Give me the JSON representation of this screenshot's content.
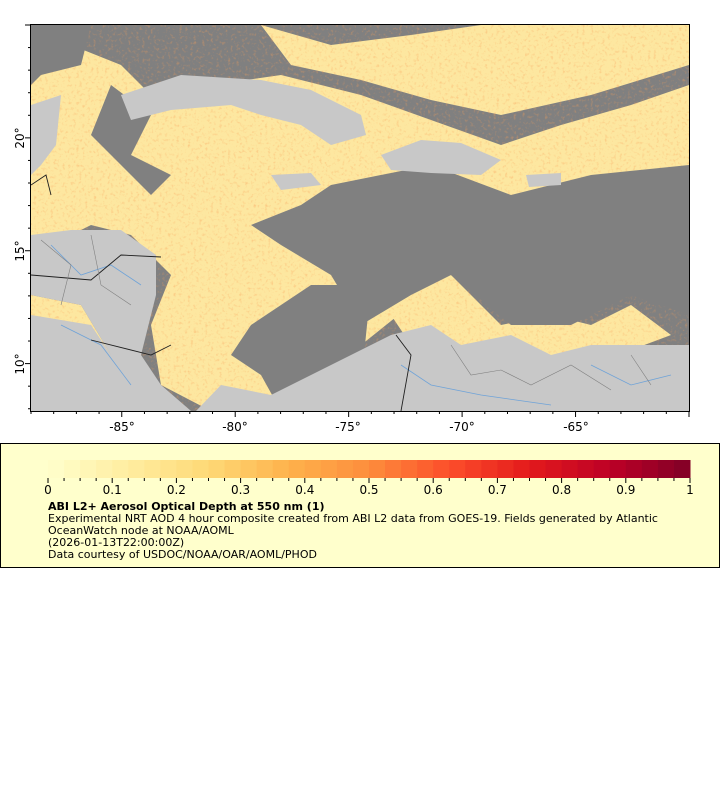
{
  "map": {
    "lon_range": [
      -89.0,
      -60.0
    ],
    "lat_range": [
      7.9,
      25.0
    ],
    "colors": {
      "ocean_nodata": "#808080",
      "land": "#c8c8c8",
      "rivers": "#6fa3d8",
      "borders": "#707070",
      "country_borders": "#202020"
    },
    "x_ticks": [
      {
        "value": -85,
        "label": "-85°"
      },
      {
        "value": -80,
        "label": "-80°"
      },
      {
        "value": -75,
        "label": "-75°"
      },
      {
        "value": -70,
        "label": "-70°"
      },
      {
        "value": -65,
        "label": "-65°"
      }
    ],
    "y_ticks": [
      {
        "value": 20,
        "label": "20°"
      },
      {
        "value": 15,
        "label": "15°"
      },
      {
        "value": 10,
        "label": "10°"
      }
    ]
  },
  "legend": {
    "colorbar": {
      "min": 0,
      "max": 1,
      "tick_labels": [
        "0",
        "0.1",
        "0.2",
        "0.3",
        "0.4",
        "0.5",
        "0.6",
        "0.7",
        "0.8",
        "0.9",
        "1"
      ],
      "palette": [
        "#ffffcc",
        "#ffeda0",
        "#fed976",
        "#feb24c",
        "#fd8d3c",
        "#fc4e2a",
        "#e31a1c",
        "#bd0026",
        "#800026"
      ]
    },
    "title": "ABI L2+ Aerosol Optical Depth at 550 nm (1)",
    "description_line1": "Experimental NRT AOD 4 hour composite created from ABI L2 data from GOES-19. Fields generated by Atlantic",
    "description_line2": "OceanWatch node at NOAA/AOML",
    "time": "(2026-01-13T22:00:00Z)",
    "credit": "Data courtesy of USDOC/NOAA/OAR/AOML/PHOD"
  }
}
